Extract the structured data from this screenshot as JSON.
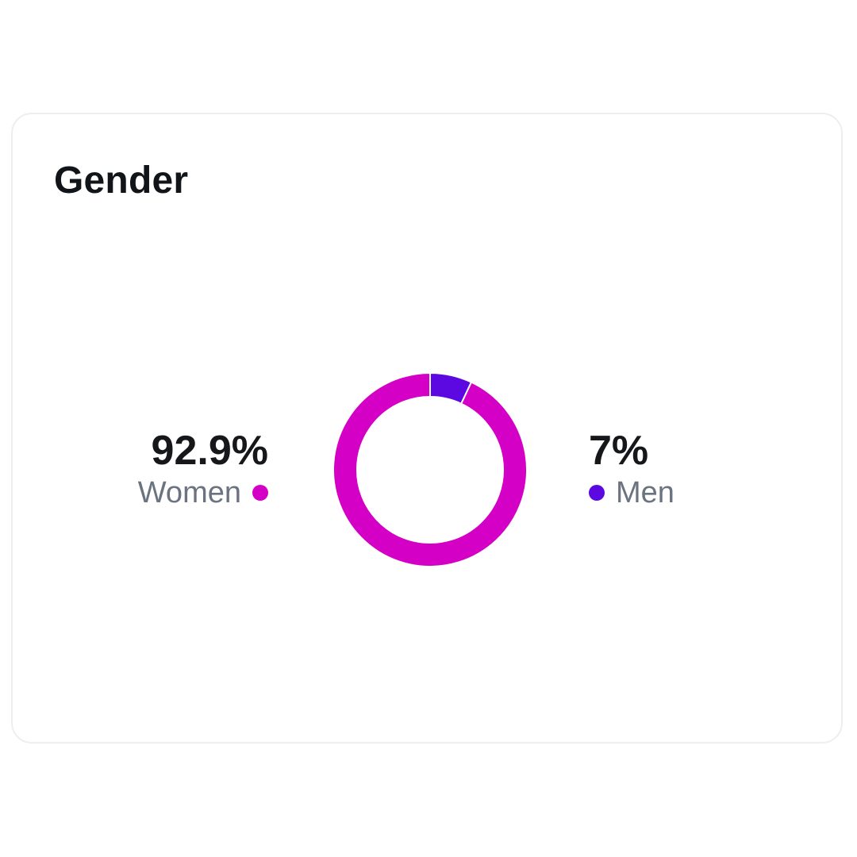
{
  "card": {
    "title": "Gender"
  },
  "chart_data": {
    "type": "pie",
    "title": "Gender",
    "slices": [
      {
        "name": "Women",
        "value": 92.9,
        "label": "92.9%",
        "color": "#d400c6"
      },
      {
        "name": "Men",
        "value": 7,
        "label": "7%",
        "color": "#5b09e0"
      }
    ]
  }
}
